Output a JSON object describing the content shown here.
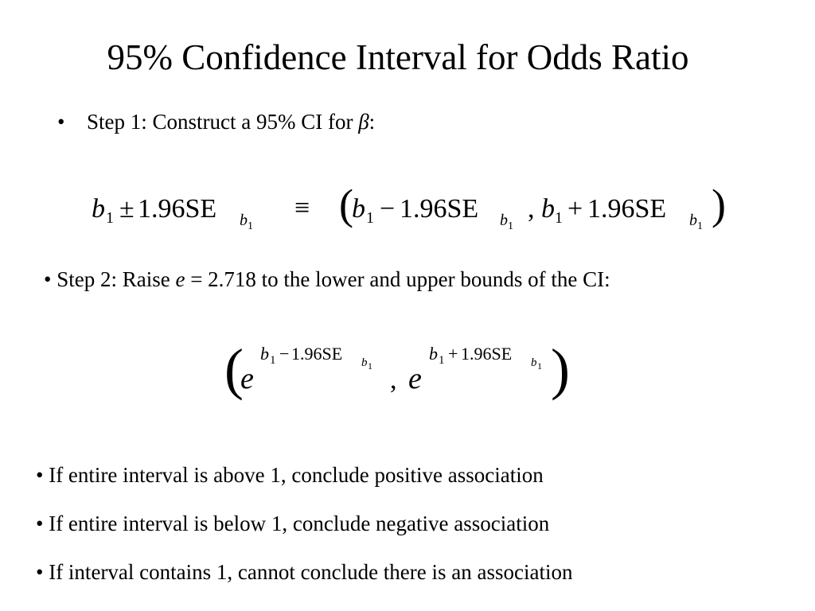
{
  "title": "95% Confidence Interval for Odds Ratio",
  "step1": {
    "bullet": "•",
    "text": "Step 1: Construct a 95% CI for",
    "symbol": "β",
    "colon": ":"
  },
  "formula1": {
    "b": "b",
    "one": "1",
    "pm": "±",
    "minus": "−",
    "plus": "+",
    "coef": "1.96SE",
    "equiv": "≡",
    "open": "(",
    "close": ")",
    "comma": ","
  },
  "step2": {
    "prefix": "• Step 2: Raise",
    "e": "e",
    "suffix": "= 2.718 to the lower and upper bounds of the CI:"
  },
  "formula2": {
    "e": "e",
    "b": "b",
    "one": "1",
    "minus": "−",
    "plus": "+",
    "coef": "1.96SE",
    "open": "(",
    "close": ")",
    "comma": ","
  },
  "notes": [
    "• If entire interval is above 1, conclude positive association",
    "• If entire interval is below 1, conclude negative association",
    "• If interval contains 1, cannot conclude there is an association"
  ]
}
